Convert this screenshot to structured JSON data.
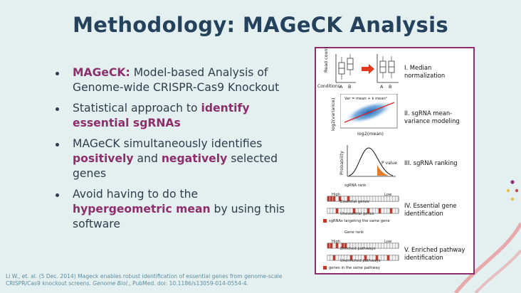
{
  "title": "Methodology: MAGeCK Analysis",
  "bullets": [
    {
      "segments": [
        {
          "text": "MAGeCK:",
          "hl": true
        },
        {
          "text": " Model-based Analysis of Genome-wide CRISPR-Cas9 Knockout",
          "hl": false
        }
      ]
    },
    {
      "segments": [
        {
          "text": "Statistical approach to ",
          "hl": false
        },
        {
          "text": "identify essential sgRNAs",
          "hl": true
        }
      ]
    },
    {
      "segments": [
        {
          "text": "MAGeCK simultaneously identifies ",
          "hl": false
        },
        {
          "text": "positively",
          "hl": true
        },
        {
          "text": " and ",
          "hl": false
        },
        {
          "text": "negatively",
          "hl": true
        },
        {
          "text": " selected genes",
          "hl": false
        }
      ]
    },
    {
      "segments": [
        {
          "text": "Avoid having to do the ",
          "hl": false
        },
        {
          "text": "hypergeometric mean",
          "hl": true
        },
        {
          "text": " by using this software",
          "hl": false
        }
      ]
    }
  ],
  "citation": {
    "text1": "Li W., et. al. (5 Dec. 2014) Mageck enables robust identification of essential genes from genome-scale CRISPR/Cas9 knockout screens. ",
    "journal": "Genome Biol.",
    "text2": ", PubMed. doi: 10.1186/s13059-014-0554-4."
  },
  "figure": {
    "steps": [
      {
        "label": "I. Median normalization"
      },
      {
        "label": "II. sgRNA mean-variance modeling"
      },
      {
        "label": "III. sgRNA ranking"
      },
      {
        "label": "IV. Essential gene identification"
      },
      {
        "label": "V. Enriched pathway identification"
      }
    ],
    "panel1": {
      "ylabel": "Read count",
      "conditions_label": "Conditions",
      "cond_a": "A",
      "cond_b": "B"
    },
    "panel2": {
      "ylabel": "log2(variance)",
      "xlabel": "log2(mean)",
      "formula": "Var = mean + k meanᵇ"
    },
    "panel3": {
      "ylabel": "Probability",
      "pvalue": "P value"
    },
    "panel4": {
      "rank_label": "sgRNA rank",
      "high": "High",
      "low": "Low",
      "essential": "Essential genes",
      "unessential": "Unessential genes",
      "legend": "sgRNAs targeting the same gene"
    },
    "panel5": {
      "rank_label": "Gene rank",
      "high": "High",
      "low": "Low",
      "enriched": "Enriched pathways",
      "unenriched": "Unenriched pathways",
      "legend": "genes in the same pathway"
    }
  },
  "colors": {
    "title": "#25425c",
    "accent": "#8c2f6b",
    "background": "#e4eff0",
    "citation": "#5e8da0"
  }
}
